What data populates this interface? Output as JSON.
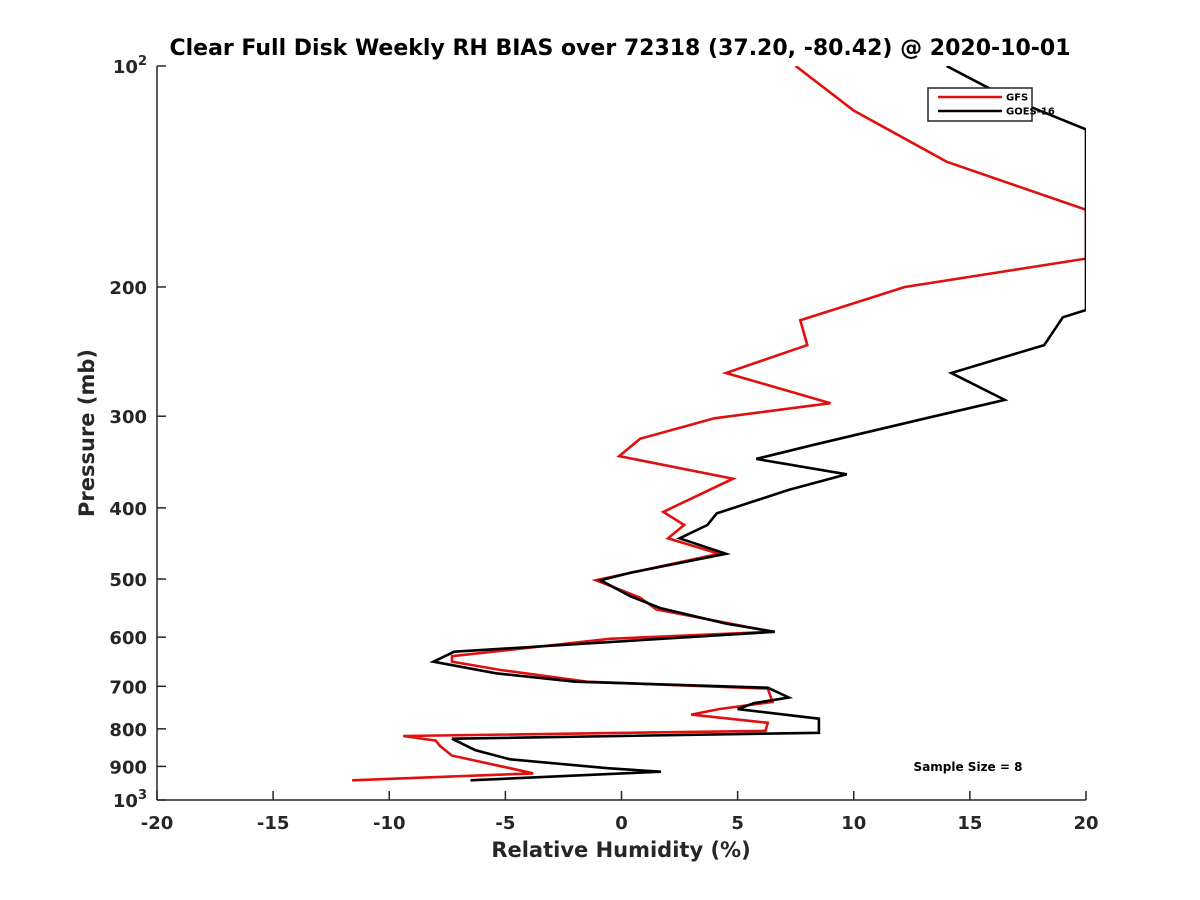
{
  "chart_data": {
    "type": "line",
    "title": "Clear Full Disk Weekly RH BIAS over 72318 (37.20, -80.42) @ 2020-10-01",
    "xlabel": "Relative Humidity (%)",
    "ylabel": "Pressure (mb)",
    "xlim": [
      -20,
      20
    ],
    "ylim": [
      100,
      1000
    ],
    "yscale": "log",
    "y_reversed": true,
    "x_ticks": [
      -20,
      -15,
      -10,
      -5,
      0,
      5,
      10,
      15,
      20
    ],
    "x_tick_labels": [
      "-20",
      "-15",
      "-10",
      "-5",
      "0",
      "5",
      "10",
      "15",
      "20"
    ],
    "y_ticks": [
      {
        "value": 100,
        "base": "10",
        "exp": "2"
      },
      {
        "value": 200,
        "label": "200"
      },
      {
        "value": 300,
        "label": "300"
      },
      {
        "value": 400,
        "label": "400"
      },
      {
        "value": 500,
        "label": "500"
      },
      {
        "value": 600,
        "label": "600"
      },
      {
        "value": 700,
        "label": "700"
      },
      {
        "value": 800,
        "label": "800"
      },
      {
        "value": 900,
        "label": "900"
      },
      {
        "value": 1000,
        "base": "10",
        "exp": "3"
      }
    ],
    "grid": false,
    "legend_position": "top-right",
    "annotation": "Sample Size = 8",
    "series": [
      {
        "name": "GFS",
        "color": "#e0100f",
        "points": [
          [
            7.5,
            100
          ],
          [
            10,
            115
          ],
          [
            14,
            135
          ],
          [
            20,
            157
          ],
          [
            20,
            183
          ],
          [
            12.2,
            200
          ],
          [
            7.7,
            222
          ],
          [
            8,
            240
          ],
          [
            4.5,
            262
          ],
          [
            9,
            288
          ],
          [
            4,
            302
          ],
          [
            0.8,
            322
          ],
          [
            -0.1,
            340
          ],
          [
            4.8,
            365
          ],
          [
            1.8,
            405
          ],
          [
            2.7,
            422
          ],
          [
            2,
            440
          ],
          [
            4.2,
            462
          ],
          [
            -1.1,
            502
          ],
          [
            0.8,
            530
          ],
          [
            1.5,
            550
          ],
          [
            6.5,
            590
          ],
          [
            -0.5,
            603
          ],
          [
            -7.3,
            637
          ],
          [
            -7.3,
            648
          ],
          [
            -5.2,
            665
          ],
          [
            -1.5,
            690
          ],
          [
            6.3,
            705
          ],
          [
            6.5,
            735
          ],
          [
            4.2,
            752
          ],
          [
            3,
            765
          ],
          [
            6.3,
            785
          ],
          [
            6.2,
            805
          ],
          [
            -9.4,
            818
          ],
          [
            -8,
            830
          ],
          [
            -7.8,
            845
          ],
          [
            -7.3,
            870
          ],
          [
            -4.8,
            905
          ],
          [
            -3.8,
            920
          ],
          [
            -11.6,
            940
          ]
        ]
      },
      {
        "name": "GOES-16",
        "color": "#000000",
        "points": [
          [
            14,
            100
          ],
          [
            16.5,
            110
          ],
          [
            20,
            122
          ],
          [
            20,
            215
          ],
          [
            19,
            220
          ],
          [
            18.2,
            240
          ],
          [
            14.2,
            262
          ],
          [
            16.5,
            285
          ],
          [
            13.1,
            302
          ],
          [
            8.3,
            328
          ],
          [
            5.8,
            343
          ],
          [
            9.7,
            360
          ],
          [
            7.2,
            378
          ],
          [
            4.1,
            407
          ],
          [
            3.7,
            422
          ],
          [
            2.5,
            440
          ],
          [
            4.5,
            462
          ],
          [
            0.4,
            490
          ],
          [
            -0.9,
            502
          ],
          [
            0.4,
            528
          ],
          [
            1.7,
            548
          ],
          [
            4.5,
            575
          ],
          [
            6.6,
            590
          ],
          [
            -7.2,
            628
          ],
          [
            -8.1,
            648
          ],
          [
            -5.4,
            672
          ],
          [
            -2,
            690
          ],
          [
            6.3,
            703
          ],
          [
            7.2,
            725
          ],
          [
            5.7,
            738
          ],
          [
            5,
            752
          ],
          [
            8.5,
            775
          ],
          [
            8.5,
            810
          ],
          [
            -7.3,
            825
          ],
          [
            -6.8,
            840
          ],
          [
            -6.3,
            855
          ],
          [
            -4.8,
            880
          ],
          [
            -0.6,
            905
          ],
          [
            1.7,
            915
          ],
          [
            -6.5,
            940
          ]
        ]
      }
    ]
  }
}
